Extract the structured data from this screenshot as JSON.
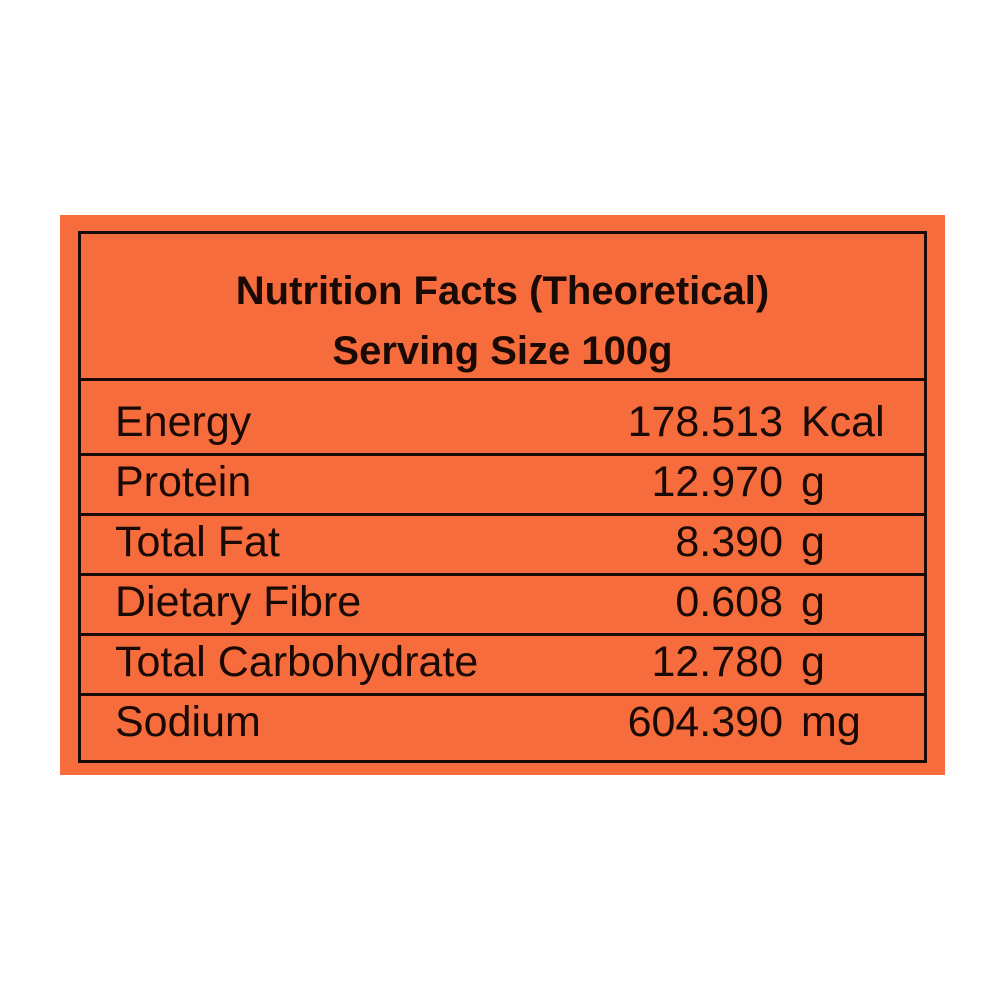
{
  "header": {
    "title": "Nutrition Facts (Theoretical)",
    "subtitle": "Serving Size 100g"
  },
  "table": {
    "rows": [
      [
        "Energy",
        "178.513",
        "Kcal"
      ],
      [
        "Protein",
        "12.970",
        "g"
      ],
      [
        "Total Fat",
        "8.390",
        "g"
      ],
      [
        "Dietary Fibre",
        "0.608",
        "g"
      ],
      [
        "Total Carbohydrate",
        "12.780",
        "g"
      ],
      [
        "Sodium",
        "604.390",
        "mg"
      ]
    ]
  }
}
